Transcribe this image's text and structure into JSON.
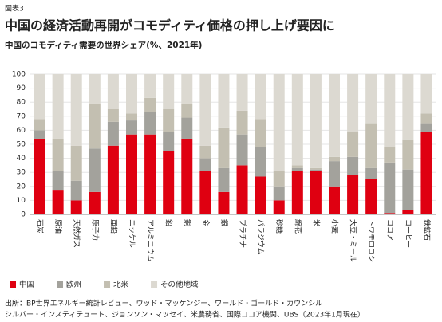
{
  "figure_label": "図表3",
  "chart_data": {
    "type": "stacked_bar",
    "title": "中国の経済活動再開がコモディティ価格の押し上げ要因に",
    "subtitle": "中国のコモディティ需要の世界シェア(%、2021年)",
    "categories": [
      "石炭",
      "原油",
      "天然ガス",
      "原子力",
      "亜鉛",
      "ニッケル",
      "アルミニウム",
      "鉛",
      "銅",
      "金",
      "銀",
      "プラチナ",
      "パラジウム",
      "砂糖",
      "綿花",
      "米",
      "小麦",
      "大豆・ミール",
      "トウモロコシ",
      "ココア",
      "コーヒー",
      "鉄鉱石"
    ],
    "series": [
      {
        "name": "中国",
        "color": "#df0011",
        "values": [
          54,
          17,
          10,
          16,
          49,
          57,
          57,
          45,
          54,
          31,
          16,
          35,
          27,
          10,
          31,
          31,
          20,
          28,
          25,
          1,
          3,
          59
        ]
      },
      {
        "name": "欧州",
        "color": "#a3a29c",
        "values": [
          6,
          14,
          14,
          31,
          17,
          10,
          16,
          14,
          15,
          9,
          17,
          22,
          21,
          10,
          2,
          1,
          18,
          13,
          8,
          36,
          29,
          6
        ]
      },
      {
        "name": "北米",
        "color": "#c3bfb1",
        "values": [
          8,
          23,
          25,
          32,
          9,
          5,
          10,
          16,
          10,
          9,
          29,
          17,
          20,
          11,
          2,
          1,
          3,
          18,
          32,
          11,
          21,
          7
        ]
      },
      {
        "name": "その他地域",
        "color": "#dcd9d1",
        "values": [
          32,
          46,
          51,
          21,
          25,
          28,
          17,
          25,
          21,
          51,
          38,
          26,
          32,
          69,
          65,
          67,
          59,
          41,
          35,
          52,
          47,
          28
        ]
      }
    ],
    "ylim": [
      0,
      100
    ],
    "yticks": [
      0,
      10,
      20,
      30,
      40,
      50,
      60,
      70,
      80,
      90,
      100
    ],
    "grid": true
  },
  "source": [
    "出所：BP世界エネルギー統計レビュー、ウッド・マッケンジー、ワールド・ゴールド・カウンシル",
    "シルバー・インスティテュート、ジョンソン・マッセイ、米農務省、国際ココア機関、UBS（2023年1月現在）"
  ]
}
